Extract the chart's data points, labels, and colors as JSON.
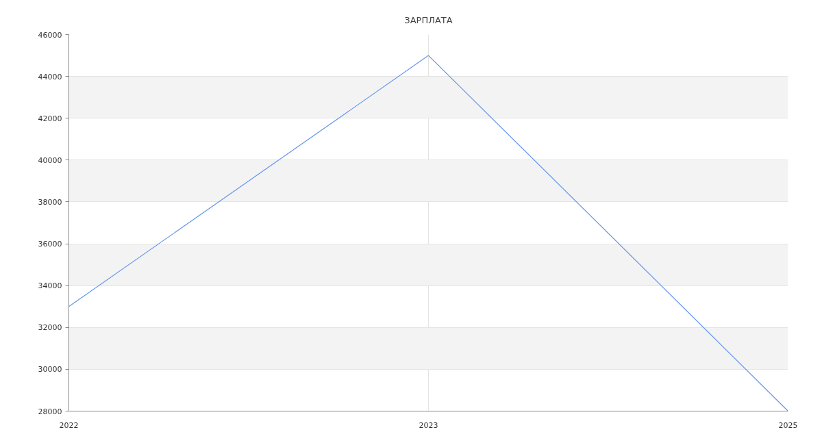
{
  "chart_data": {
    "type": "line",
    "title": "ЗАРПЛАТА",
    "categories": [
      "2022",
      "2023",
      "2025"
    ],
    "series": [
      {
        "color": "#6495ed",
        "values": [
          33000,
          45000,
          28000
        ]
      }
    ],
    "ylim": [
      28000,
      46000
    ],
    "yticks": [
      28000,
      30000,
      32000,
      34000,
      36000,
      38000,
      40000,
      42000,
      44000,
      46000
    ],
    "grid": true
  }
}
